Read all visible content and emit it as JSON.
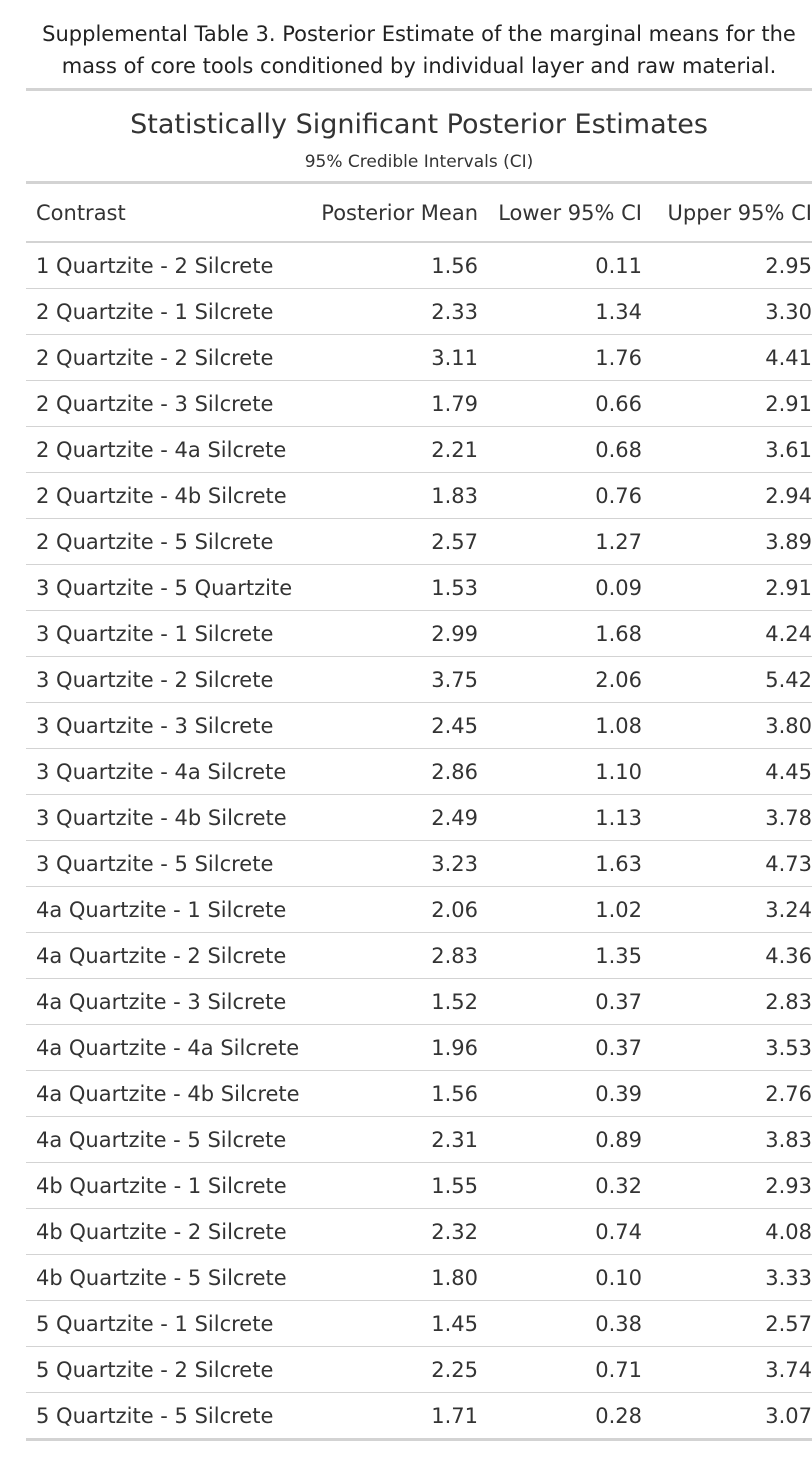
{
  "caption": {
    "line1": "Supplemental Table 3. Posterior Estimate of the marginal means for the",
    "line2": "mass of core tools conditioned by individual layer and raw material."
  },
  "table": {
    "title": "Statistically Significant Posterior Estimates",
    "subtitle": "95% Credible Intervals (CI)",
    "headers": [
      "Contrast",
      "Posterior Mean",
      "Lower 95% CI",
      "Upper 95% CI"
    ],
    "rows": [
      [
        "1 Quartzite - 2 Silcrete",
        "1.56",
        "0.11",
        "2.95"
      ],
      [
        "2 Quartzite - 1 Silcrete",
        "2.33",
        "1.34",
        "3.30"
      ],
      [
        "2 Quartzite - 2 Silcrete",
        "3.11",
        "1.76",
        "4.41"
      ],
      [
        "2 Quartzite - 3 Silcrete",
        "1.79",
        "0.66",
        "2.91"
      ],
      [
        "2 Quartzite - 4a Silcrete",
        "2.21",
        "0.68",
        "3.61"
      ],
      [
        "2 Quartzite - 4b Silcrete",
        "1.83",
        "0.76",
        "2.94"
      ],
      [
        "2 Quartzite - 5 Silcrete",
        "2.57",
        "1.27",
        "3.89"
      ],
      [
        "3 Quartzite - 5 Quartzite",
        "1.53",
        "0.09",
        "2.91"
      ],
      [
        "3 Quartzite - 1 Silcrete",
        "2.99",
        "1.68",
        "4.24"
      ],
      [
        "3 Quartzite - 2 Silcrete",
        "3.75",
        "2.06",
        "5.42"
      ],
      [
        "3 Quartzite - 3 Silcrete",
        "2.45",
        "1.08",
        "3.80"
      ],
      [
        "3 Quartzite - 4a Silcrete",
        "2.86",
        "1.10",
        "4.45"
      ],
      [
        "3 Quartzite - 4b Silcrete",
        "2.49",
        "1.13",
        "3.78"
      ],
      [
        "3 Quartzite - 5 Silcrete",
        "3.23",
        "1.63",
        "4.73"
      ],
      [
        "4a Quartzite - 1 Silcrete",
        "2.06",
        "1.02",
        "3.24"
      ],
      [
        "4a Quartzite - 2 Silcrete",
        "2.83",
        "1.35",
        "4.36"
      ],
      [
        "4a Quartzite - 3 Silcrete",
        "1.52",
        "0.37",
        "2.83"
      ],
      [
        "4a Quartzite - 4a Silcrete",
        "1.96",
        "0.37",
        "3.53"
      ],
      [
        "4a Quartzite - 4b Silcrete",
        "1.56",
        "0.39",
        "2.76"
      ],
      [
        "4a Quartzite - 5 Silcrete",
        "2.31",
        "0.89",
        "3.83"
      ],
      [
        "4b Quartzite - 1 Silcrete",
        "1.55",
        "0.32",
        "2.93"
      ],
      [
        "4b Quartzite - 2 Silcrete",
        "2.32",
        "0.74",
        "4.08"
      ],
      [
        "4b Quartzite - 5 Silcrete",
        "1.80",
        "0.10",
        "3.33"
      ],
      [
        "5 Quartzite - 1 Silcrete",
        "1.45",
        "0.38",
        "2.57"
      ],
      [
        "5 Quartzite - 2 Silcrete",
        "2.25",
        "0.71",
        "3.74"
      ],
      [
        "5 Quartzite - 5 Silcrete",
        "1.71",
        "0.28",
        "3.07"
      ]
    ]
  }
}
